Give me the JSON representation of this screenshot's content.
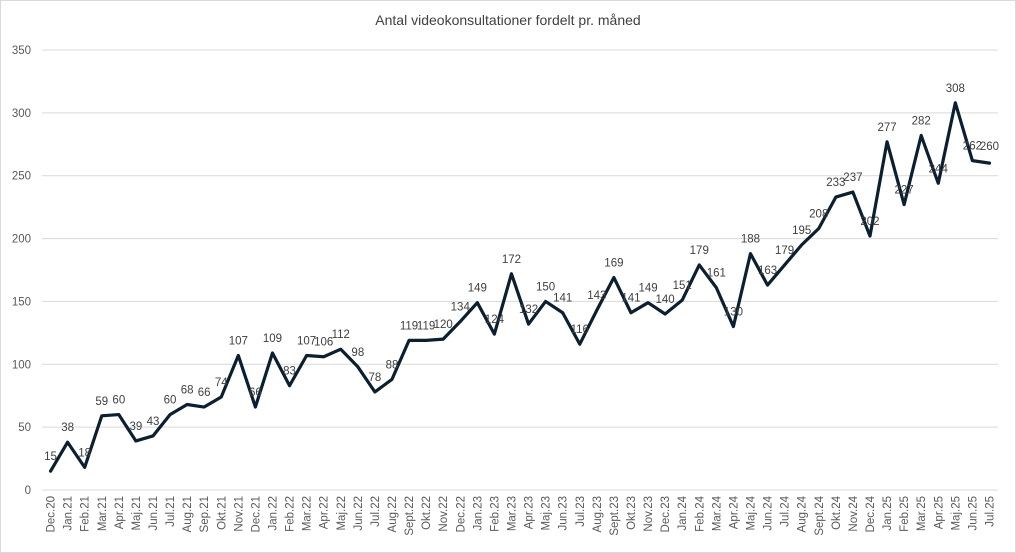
{
  "chart_data": {
    "type": "line",
    "title": "Antal videokonsultationer  fordelt pr. måned",
    "xlabel": "",
    "ylabel": "",
    "ylim": [
      0,
      350
    ],
    "yticks": [
      0,
      50,
      100,
      150,
      200,
      250,
      300,
      350
    ],
    "grid": true,
    "legend": "none",
    "colors": {
      "line": "#0b1f30",
      "grid": "#d9d9d9",
      "text": "#595959"
    },
    "categories": [
      "Dec.20",
      "Jan.21",
      "Feb.21",
      "Mar.21",
      "Apr.21",
      "Maj.21",
      "Jun.21",
      "Jul.21",
      "Aug.21",
      "Sep.21",
      "Okt.21",
      "Nov.21",
      "Dec.21",
      "Jan.22",
      "Feb.22",
      "Mar.22",
      "Apr.22",
      "Maj.22",
      "Jun.22",
      "Jul.22",
      "Aug.22",
      "Sept.22",
      "Okt.22",
      "Nov.22",
      "Dec.22",
      "Jan.23",
      "Feb.23",
      "Mar.23",
      "Apr.23",
      "Maj.23",
      "Jun.23",
      "Jul.23",
      "Aug.23",
      "Sept.23",
      "Okt.23",
      "Nov.23",
      "Dec.23",
      "Jan.24",
      "Feb.24",
      "Mar.24",
      "Apr.24",
      "Maj.24",
      "Jun.24",
      "Jul.24",
      "Aug.24",
      "Sept.24",
      "Okt.24",
      "Nov.24",
      "Dec.24",
      "Jan.25",
      "Feb.25",
      "Mar.25",
      "Apr.25",
      "Maj.25",
      "Jun.25",
      "Jul.25"
    ],
    "series": [
      {
        "values": [
          15,
          38,
          18,
          59,
          60,
          39,
          43,
          60,
          68,
          66,
          74,
          107,
          66,
          109,
          83,
          107,
          106,
          112,
          98,
          78,
          88,
          119,
          119,
          120,
          134,
          149,
          124,
          172,
          132,
          150,
          141,
          116,
          143,
          169,
          141,
          149,
          140,
          151,
          179,
          161,
          130,
          188,
          163,
          179,
          195,
          208,
          233,
          237,
          202,
          277,
          227,
          282,
          244,
          308,
          262,
          260
        ]
      }
    ]
  }
}
